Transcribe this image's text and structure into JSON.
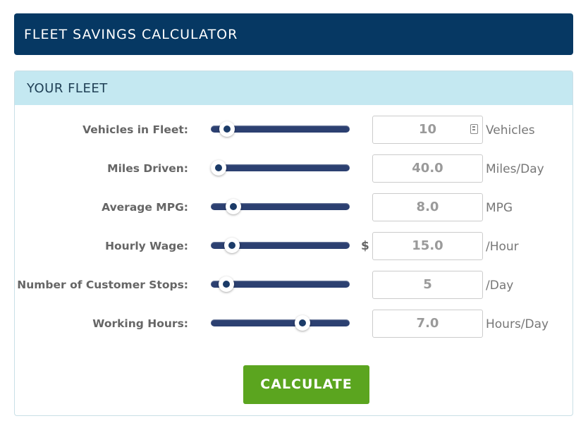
{
  "header": {
    "title": "FLEET SAVINGS CALCULATOR"
  },
  "panel": {
    "title": "YOUR FLEET"
  },
  "fields": [
    {
      "label": "Vehicles in Fleet:",
      "value": "10",
      "unit": "Vehicles",
      "slider_fraction": 0.07
    },
    {
      "label": "Miles Driven:",
      "value": "40.0",
      "unit": "Miles/Day",
      "slider_fraction": 0.0
    },
    {
      "label": "Average MPG:",
      "value": "8.0",
      "unit": "MPG",
      "slider_fraction": 0.12
    },
    {
      "label": "Hourly Wage:",
      "value": "15.0",
      "unit": "/Hour",
      "currency": "$",
      "slider_fraction": 0.11
    },
    {
      "label": "Number of Customer Stops:",
      "value": "5",
      "unit": "/Day",
      "slider_fraction": 0.06
    },
    {
      "label": "Working Hours:",
      "value": "7.0",
      "unit": "Hours/Day",
      "slider_fraction": 0.68
    }
  ],
  "calculate_label": "CALCULATE",
  "colors": {
    "header": "#063863",
    "panel_head": "#c4e8f1",
    "track": "#2c4071",
    "button": "#5ba51f"
  },
  "icons": {
    "spinner": "spinner-icon"
  }
}
